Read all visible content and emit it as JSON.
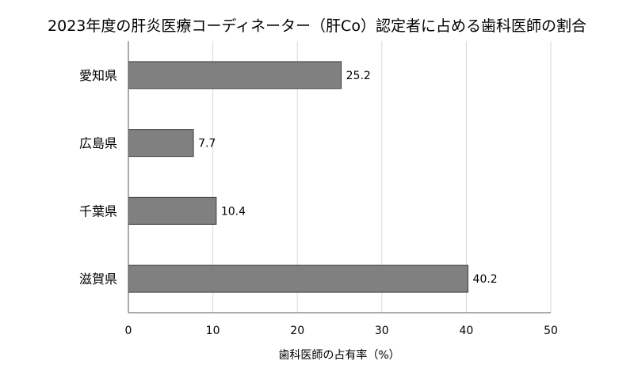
{
  "chart_data": {
    "type": "bar",
    "orientation": "horizontal",
    "title": "2023年度の肝炎医療コーディネーター（肝Co）認定者に占める歯科医師の割合",
    "xlabel": "歯科医師の占有率（%）",
    "ylabel": "",
    "categories": [
      "愛知県",
      "広島県",
      "千葉県",
      "滋賀県"
    ],
    "values": [
      25.2,
      7.7,
      10.4,
      40.2
    ],
    "data_labels": [
      "25.2",
      "7.7",
      "10.4",
      "40.2"
    ],
    "xlim": [
      0,
      50
    ],
    "x_ticks": [
      0,
      10,
      20,
      30,
      40,
      50
    ],
    "x_tick_labels": [
      "0",
      "10",
      "20",
      "30",
      "40",
      "50"
    ],
    "grid": "vertical",
    "legend": "none",
    "colors": {
      "bar_fill": "#808080",
      "bar_stroke": "#404040",
      "grid": "#d9d9d9",
      "axis": "#595959"
    }
  }
}
